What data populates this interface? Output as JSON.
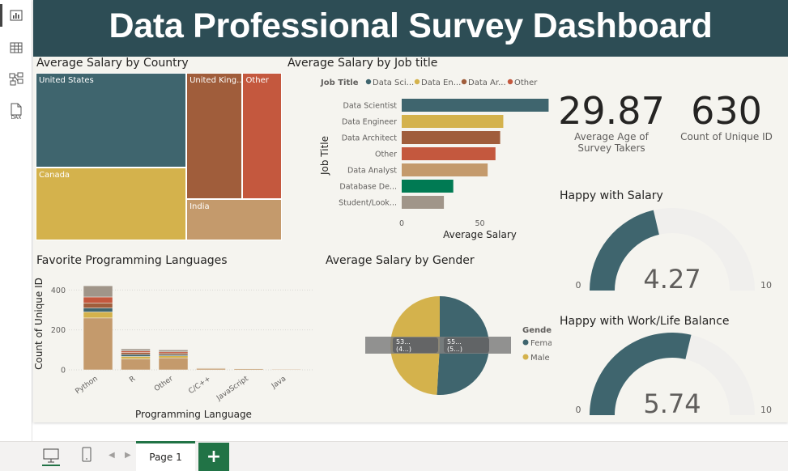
{
  "title": "Data Professional Survey Dashboard",
  "rail": {
    "icons": [
      "report-view-icon",
      "table-view-icon",
      "model-view-icon",
      "dax-view-icon"
    ],
    "dax_label": "DAX"
  },
  "visuals": {
    "country": {
      "title": "Average Salary by Country"
    },
    "job": {
      "title": "Average Salary by Job title"
    },
    "languages": {
      "title": "Favorite Programming Languages"
    },
    "gender": {
      "title": "Average Salary by Gender"
    },
    "kpi_age": {
      "value": "29.87",
      "label_line1": "Average Age of",
      "label_line2": "Survey Takers"
    },
    "kpi_count": {
      "value": "630",
      "label": "Count of Unique ID"
    },
    "happy_salary": {
      "title": "Happy with Salary"
    },
    "happy_balance": {
      "title": "Happy with Work/Life Balance"
    }
  },
  "chart_data": [
    {
      "id": "country",
      "type": "treemap",
      "title": "Average Salary by Country",
      "items": [
        {
          "label": "United States",
          "value": 80,
          "color": "#3f656e"
        },
        {
          "label": "Canada",
          "value": 62,
          "color": "#d4b24c"
        },
        {
          "label": "United Kingdom",
          "display": "United King...",
          "value": 40,
          "color": "#a05d3b"
        },
        {
          "label": "Other",
          "value": 28,
          "color": "#c4583e"
        },
        {
          "label": "India",
          "value": 22,
          "color": "#c49a6c"
        }
      ]
    },
    {
      "id": "job",
      "type": "bar",
      "orientation": "horizontal",
      "title": "Average Salary by Job title",
      "xlabel": "Average Salary",
      "ylabel": "Job Title",
      "xlim": [
        0,
        100
      ],
      "xticks": [
        0,
        50,
        100
      ],
      "legend": {
        "title": "Job Title",
        "entries": [
          {
            "label": "Data Sci...",
            "color": "#3f656e"
          },
          {
            "label": "Data En...",
            "color": "#d4b24c"
          },
          {
            "label": "Data Ar...",
            "color": "#a05d3b"
          },
          {
            "label": "Other",
            "color": "#c4583e"
          }
        ]
      },
      "categories": [
        "Data Scientist",
        "Data Engineer",
        "Data Architect",
        "Other",
        "Data Analyst",
        "Database De...",
        "Student/Look..."
      ],
      "values": [
        94,
        65,
        63,
        60,
        55,
        33,
        27
      ],
      "colors": [
        "#3f656e",
        "#d4b24c",
        "#a05d3b",
        "#c4583e",
        "#c49a6c",
        "#007a53",
        "#a09589"
      ]
    },
    {
      "id": "languages",
      "type": "bar",
      "stacked": true,
      "title": "Favorite Programming Languages",
      "xlabel": "Programming Language",
      "ylabel": "Count of Unique ID",
      "ylim": [
        0,
        450
      ],
      "yticks": [
        0,
        200,
        400
      ],
      "categories": [
        "Python",
        "R",
        "Other",
        "C/C++",
        "JavaScript",
        "Java"
      ],
      "segment_colors": [
        "#c49a6c",
        "#d4b24c",
        "#3f656e",
        "#a05d3b",
        "#c4583e",
        "#a09589"
      ],
      "stacks": [
        [
          260,
          30,
          20,
          25,
          30,
          56
        ],
        [
          55,
          12,
          10,
          10,
          8,
          10
        ],
        [
          60,
          10,
          6,
          8,
          6,
          10
        ],
        [
          7,
          2,
          1,
          1,
          1,
          1
        ],
        [
          5,
          1,
          1,
          1,
          1,
          1
        ],
        [
          3,
          1,
          0,
          0,
          0,
          0
        ]
      ]
    },
    {
      "id": "gender",
      "type": "pie",
      "title": "Average Salary by Gender",
      "legend": {
        "title": "Gender",
        "position": "right"
      },
      "slices": [
        {
          "label": "Female",
          "value": 55,
          "data_label": "55...",
          "data_label_sub": "(5...)",
          "color": "#3f656e"
        },
        {
          "label": "Male",
          "value": 53,
          "data_label": "53...",
          "data_label_sub": "(4...)",
          "color": "#d4b24c"
        }
      ]
    },
    {
      "id": "happy_salary",
      "type": "gauge",
      "title": "Happy with Salary",
      "value": 4.27,
      "display_value": "4.27",
      "min": 0,
      "max": 10,
      "min_label": "0",
      "max_label": "10",
      "fill_color": "#3f656e",
      "track_color": "#f0efed"
    },
    {
      "id": "happy_balance",
      "type": "gauge",
      "title": "Happy with Work/Life Balance",
      "value": 5.74,
      "display_value": "5.74",
      "min": 0,
      "max": 10,
      "min_label": "0",
      "max_label": "10",
      "fill_color": "#3f656e",
      "track_color": "#f0efed"
    }
  ],
  "footer": {
    "page_tab": "Page 1",
    "add_label": "+"
  }
}
